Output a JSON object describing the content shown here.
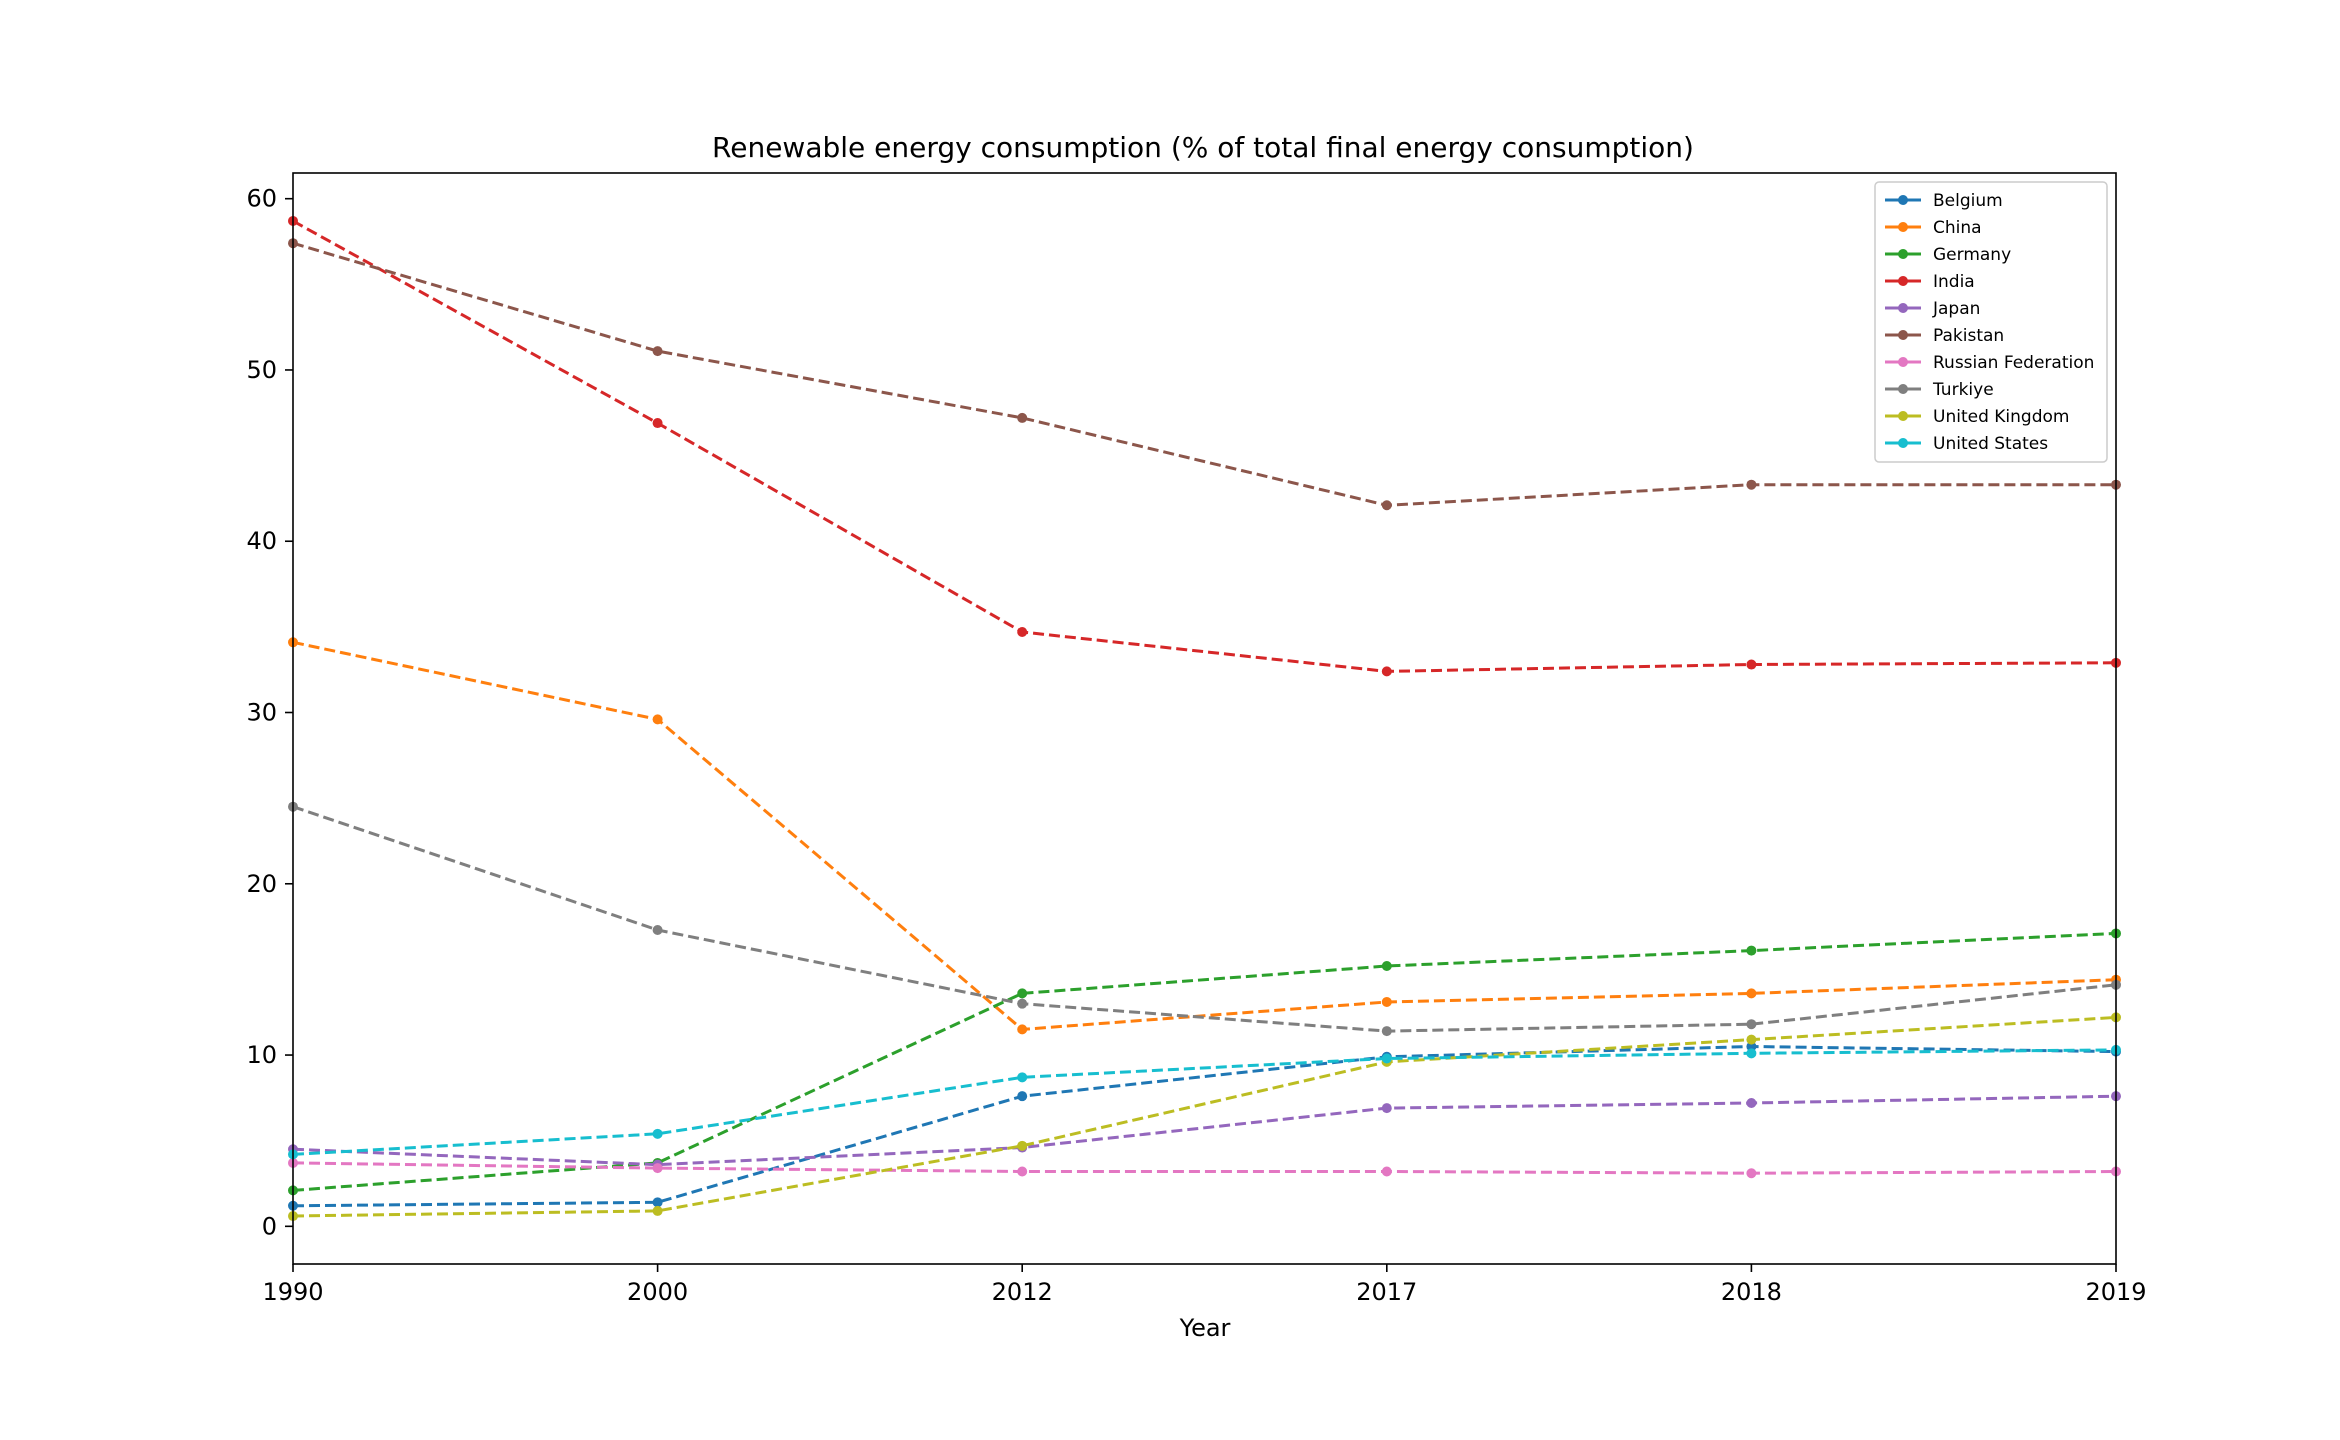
{
  "chart_data": {
    "type": "line",
    "title": "Renewable energy consumption (% of total final energy consumption)",
    "xlabel": "Year",
    "ylabel": "",
    "categories": [
      "1990",
      "2000",
      "2012",
      "2017",
      "2018",
      "2019"
    ],
    "ylim": [
      -2.2,
      61.5
    ],
    "yticks": [
      0,
      10,
      20,
      30,
      40,
      50,
      60
    ],
    "line_style": "dashed",
    "marker": "circle",
    "grid": false,
    "legend_position": "top-right",
    "series": [
      {
        "name": "Belgium",
        "color": "#1f77b4",
        "values": [
          1.2,
          1.4,
          7.6,
          9.9,
          10.5,
          10.2
        ]
      },
      {
        "name": "China",
        "color": "#ff7f0e",
        "values": [
          34.1,
          29.6,
          11.5,
          13.1,
          13.6,
          14.4
        ]
      },
      {
        "name": "Germany",
        "color": "#2ca02c",
        "values": [
          2.1,
          3.7,
          13.6,
          15.2,
          16.1,
          17.1
        ]
      },
      {
        "name": "India",
        "color": "#d62728",
        "values": [
          58.7,
          46.9,
          34.7,
          32.4,
          32.8,
          32.9
        ]
      },
      {
        "name": "Japan",
        "color": "#9467bd",
        "values": [
          4.5,
          3.6,
          4.6,
          6.9,
          7.2,
          7.6
        ]
      },
      {
        "name": "Pakistan",
        "color": "#8c564b",
        "values": [
          57.4,
          51.1,
          47.2,
          42.1,
          43.3,
          43.3
        ]
      },
      {
        "name": "Russian Federation",
        "color": "#e377c2",
        "values": [
          3.7,
          3.4,
          3.2,
          3.2,
          3.1,
          3.2
        ]
      },
      {
        "name": "Turkiye",
        "color": "#7f7f7f",
        "values": [
          24.5,
          17.3,
          13.0,
          11.4,
          11.8,
          14.1
        ]
      },
      {
        "name": "United Kingdom",
        "color": "#bcbd22",
        "values": [
          0.6,
          0.9,
          4.7,
          9.6,
          10.9,
          12.2
        ]
      },
      {
        "name": "United States",
        "color": "#17becf",
        "values": [
          4.2,
          5.4,
          8.7,
          9.8,
          10.1,
          10.3
        ]
      }
    ]
  }
}
